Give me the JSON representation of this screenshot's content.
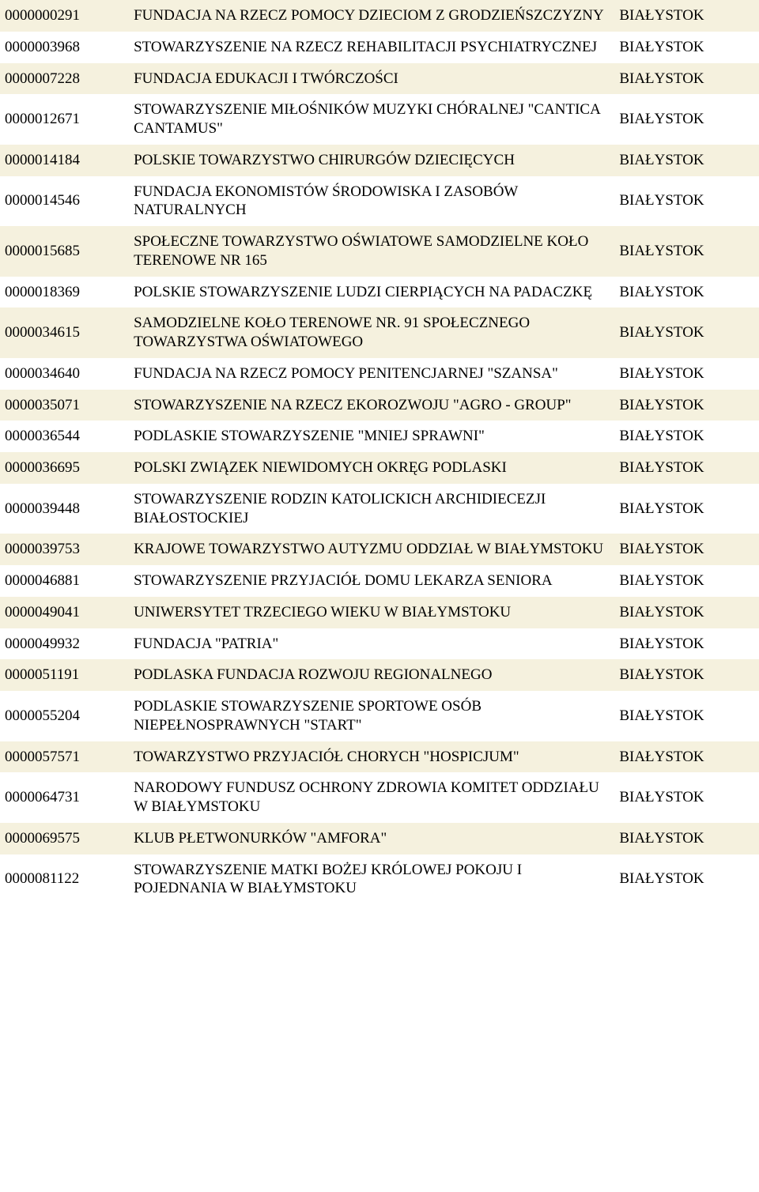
{
  "rows": [
    {
      "id": "0000000291",
      "name": "FUNDACJA NA RZECZ POMOCY DZIECIOM Z GRODZIEŃSZCZYZNY",
      "city": "BIAŁYSTOK"
    },
    {
      "id": "0000003968",
      "name": "STOWARZYSZENIE NA RZECZ REHABILITACJI PSYCHIATRYCZNEJ",
      "city": "BIAŁYSTOK"
    },
    {
      "id": "0000007228",
      "name": "FUNDACJA EDUKACJI I TWÓRCZOŚCI",
      "city": "BIAŁYSTOK"
    },
    {
      "id": "0000012671",
      "name": "STOWARZYSZENIE MIŁOŚNIKÓW MUZYKI CHÓRALNEJ \"CANTICA CANTAMUS\"",
      "city": "BIAŁYSTOK"
    },
    {
      "id": "0000014184",
      "name": "POLSKIE TOWARZYSTWO CHIRURGÓW DZIECIĘCYCH",
      "city": "BIAŁYSTOK"
    },
    {
      "id": "0000014546",
      "name": "FUNDACJA EKONOMISTÓW ŚRODOWISKA I ZASOBÓW NATURALNYCH",
      "city": "BIAŁYSTOK"
    },
    {
      "id": "0000015685",
      "name": "SPOŁECZNE TOWARZYSTWO OŚWIATOWE SAMODZIELNE KOŁO TERENOWE NR 165",
      "city": "BIAŁYSTOK"
    },
    {
      "id": "0000018369",
      "name": "POLSKIE STOWARZYSZENIE LUDZI CIERPIĄCYCH NA PADACZKĘ",
      "city": "BIAŁYSTOK"
    },
    {
      "id": "0000034615",
      "name": "SAMODZIELNE KOŁO TERENOWE NR. 91 SPOŁECZNEGO TOWARZYSTWA OŚWIATOWEGO",
      "city": "BIAŁYSTOK"
    },
    {
      "id": "0000034640",
      "name": "FUNDACJA NA RZECZ POMOCY PENITENCJARNEJ \"SZANSA\"",
      "city": "BIAŁYSTOK"
    },
    {
      "id": "0000035071",
      "name": "STOWARZYSZENIE NA RZECZ EKOROZWOJU \"AGRO - GROUP\"",
      "city": "BIAŁYSTOK"
    },
    {
      "id": "0000036544",
      "name": "PODLASKIE STOWARZYSZENIE \"MNIEJ SPRAWNI\"",
      "city": "BIAŁYSTOK"
    },
    {
      "id": "0000036695",
      "name": "POLSKI ZWIĄZEK NIEWIDOMYCH OKRĘG PODLASKI",
      "city": "BIAŁYSTOK"
    },
    {
      "id": "0000039448",
      "name": "STOWARZYSZENIE RODZIN KATOLICKICH ARCHIDIECEZJI BIAŁOSTOCKIEJ",
      "city": "BIAŁYSTOK"
    },
    {
      "id": "0000039753",
      "name": "KRAJOWE TOWARZYSTWO AUTYZMU ODDZIAŁ W BIAŁYMSTOKU",
      "city": "BIAŁYSTOK"
    },
    {
      "id": "0000046881",
      "name": "STOWARZYSZENIE PRZYJACIÓŁ DOMU LEKARZA SENIORA",
      "city": "BIAŁYSTOK"
    },
    {
      "id": "0000049041",
      "name": "UNIWERSYTET TRZECIEGO WIEKU W BIAŁYMSTOKU",
      "city": "BIAŁYSTOK"
    },
    {
      "id": "0000049932",
      "name": "FUNDACJA \"PATRIA\"",
      "city": "BIAŁYSTOK"
    },
    {
      "id": "0000051191",
      "name": "PODLASKA FUNDACJA ROZWOJU REGIONALNEGO",
      "city": "BIAŁYSTOK"
    },
    {
      "id": "0000055204",
      "name": "PODLASKIE STOWARZYSZENIE SPORTOWE OSÓB NIEPEŁNOSPRAWNYCH \"START\"",
      "city": "BIAŁYSTOK"
    },
    {
      "id": "0000057571",
      "name": "TOWARZYSTWO PRZYJACIÓŁ CHORYCH \"HOSPICJUM\"",
      "city": "BIAŁYSTOK"
    },
    {
      "id": "0000064731",
      "name": "NARODOWY FUNDUSZ OCHRONY ZDROWIA KOMITET ODDZIAŁU W BIAŁYMSTOKU",
      "city": "BIAŁYSTOK"
    },
    {
      "id": "0000069575",
      "name": "KLUB PŁETWONURKÓW \"AMFORA\"",
      "city": "BIAŁYSTOK"
    },
    {
      "id": "0000081122",
      "name": "STOWARZYSZENIE MATKI BOŻEJ KRÓLOWEJ POKOJU I POJEDNANIA W BIAŁYMSTOKU",
      "city": "BIAŁYSTOK"
    }
  ]
}
